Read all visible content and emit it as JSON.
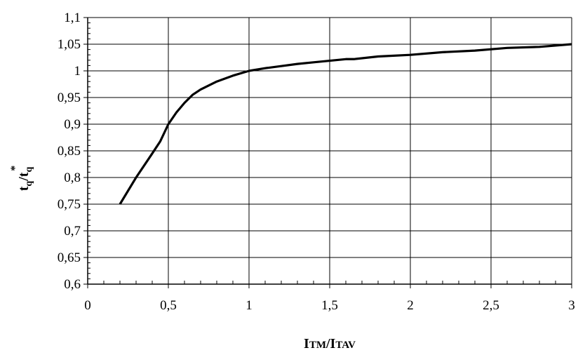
{
  "chart_data": {
    "type": "line",
    "xlabel": {
      "main1": "I",
      "sub1": "TM",
      "slash": "/",
      "main2": "I",
      "sub2": "TAV"
    },
    "ylabel": {
      "main1": "t",
      "sub1": "q",
      "slash": "/",
      "main2": "t",
      "sub2": "q",
      "sup2": "*"
    },
    "xlim": [
      0,
      3
    ],
    "ylim": [
      0.6,
      1.1
    ],
    "x_ticks": [
      0,
      0.5,
      1,
      1.5,
      2,
      2.5,
      3
    ],
    "x_tick_labels": [
      "0",
      "0,5",
      "1",
      "1,5",
      "2",
      "2,5",
      "3"
    ],
    "y_ticks": [
      0.6,
      0.65,
      0.7,
      0.75,
      0.8,
      0.85,
      0.9,
      0.95,
      1,
      1.05,
      1.1
    ],
    "y_tick_labels": [
      "0,6",
      "0,65",
      "0,7",
      "0,75",
      "0,8",
      "0,85",
      "0,9",
      "0,95",
      "1",
      "1,05",
      "1,1"
    ],
    "x_minor_step": 0.1,
    "y_minor_step": 0.01,
    "grid": true,
    "line_color": "#000000",
    "series": [
      {
        "x": [
          0.2,
          0.3,
          0.4,
          0.45,
          0.5,
          0.55,
          0.6,
          0.65,
          0.7,
          0.8,
          0.9,
          1.0,
          1.1,
          1.2,
          1.3,
          1.4,
          1.5,
          1.6,
          1.65,
          1.8,
          2.0,
          2.2,
          2.4,
          2.6,
          2.8,
          3.0
        ],
        "y": [
          0.75,
          0.8,
          0.845,
          0.868,
          0.9,
          0.922,
          0.94,
          0.955,
          0.965,
          0.98,
          0.991,
          1.0,
          1.005,
          1.009,
          1.013,
          1.016,
          1.019,
          1.022,
          1.022,
          1.027,
          1.03,
          1.035,
          1.038,
          1.043,
          1.045,
          1.05
        ]
      }
    ]
  }
}
